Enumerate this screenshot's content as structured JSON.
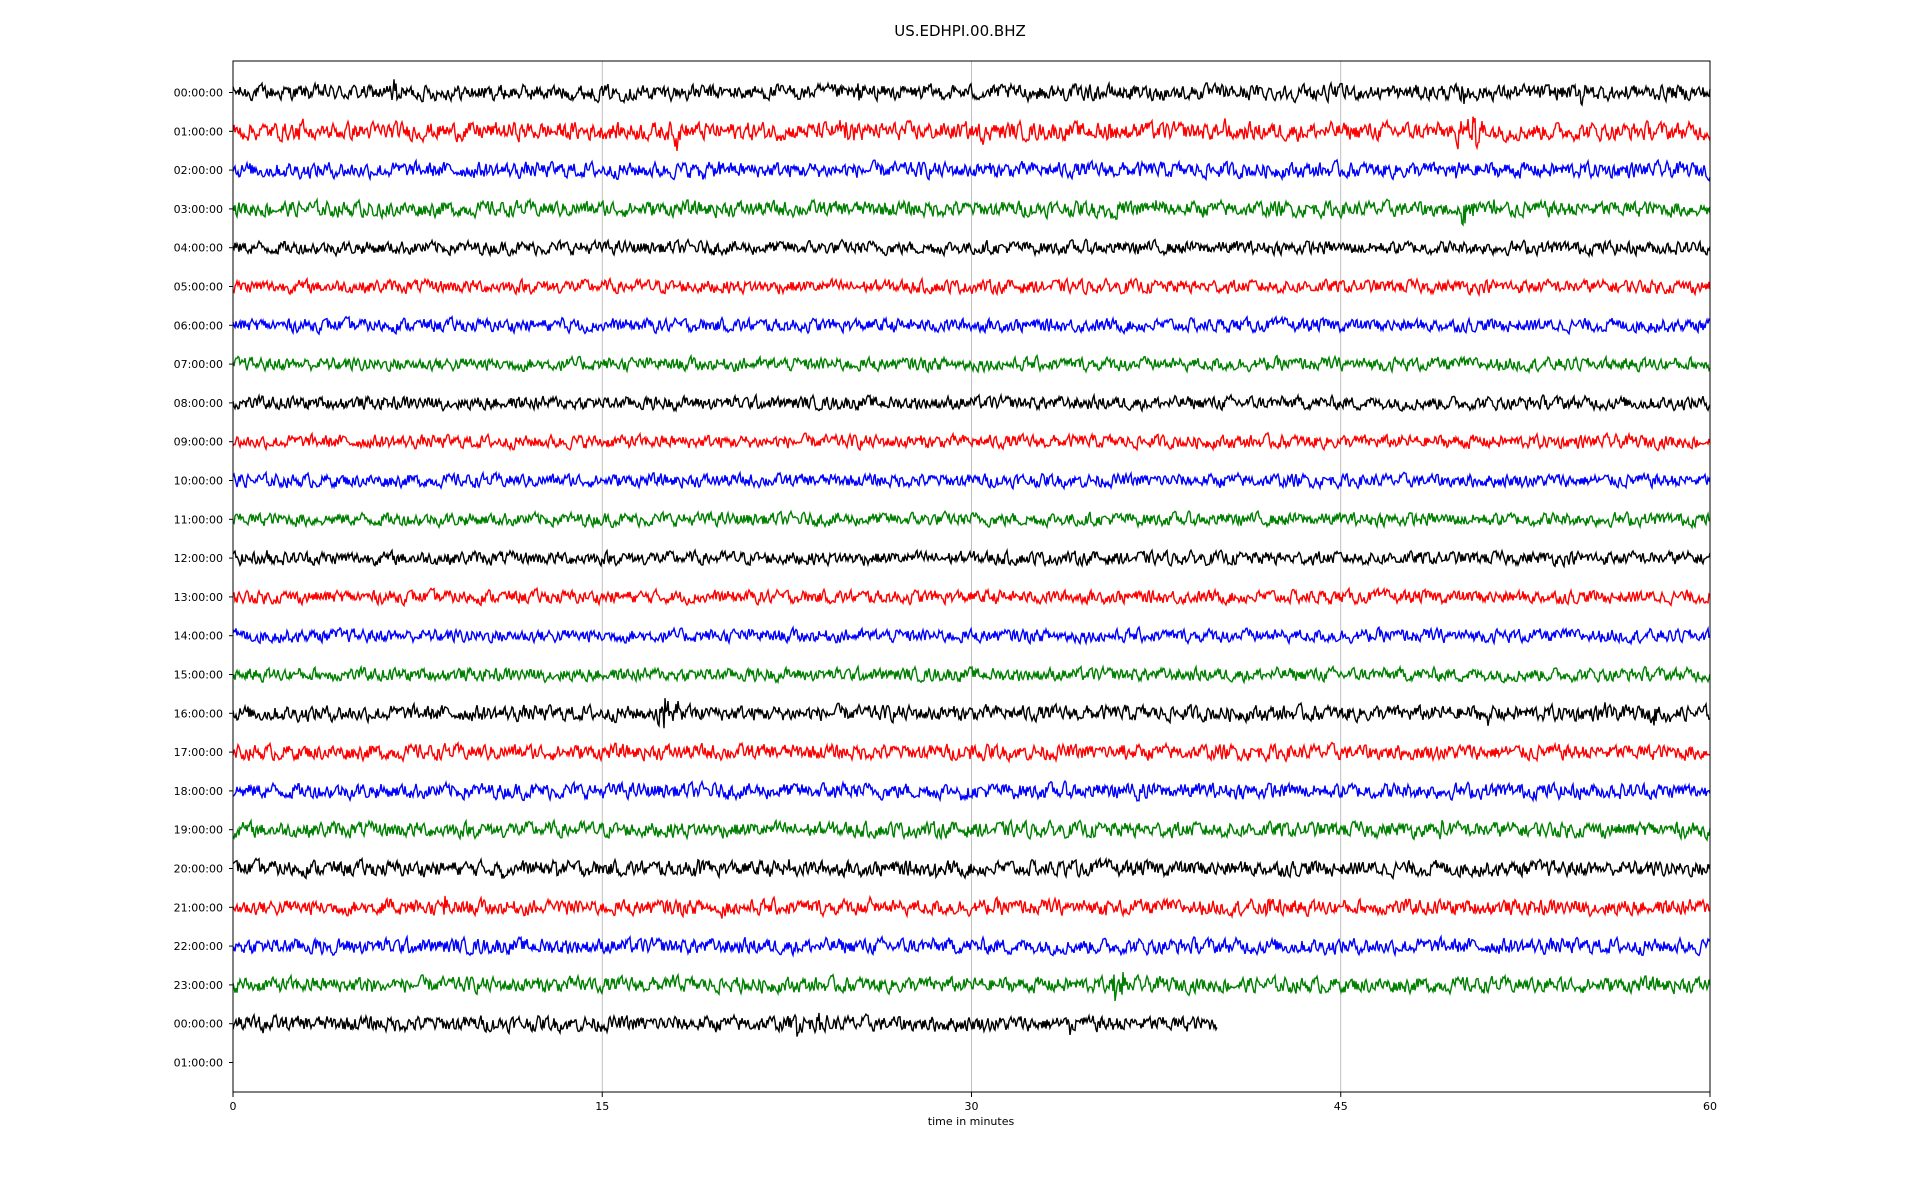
{
  "chart_data": {
    "type": "line",
    "title": "US.EDHPI.00.BHZ",
    "xlabel": "time in minutes",
    "ylabel": "",
    "xlim": [
      0,
      60
    ],
    "xticks": [
      0,
      15,
      30,
      45,
      60
    ],
    "grid": "vertical",
    "colors": [
      "#000000",
      "#ff0000",
      "#0000ff",
      "#008000"
    ],
    "row_labels": [
      "00:00:00",
      "01:00:00",
      "02:00:00",
      "03:00:00",
      "04:00:00",
      "05:00:00",
      "06:00:00",
      "07:00:00",
      "08:00:00",
      "09:00:00",
      "10:00:00",
      "11:00:00",
      "12:00:00",
      "13:00:00",
      "14:00:00",
      "15:00:00",
      "16:00:00",
      "17:00:00",
      "18:00:00",
      "19:00:00",
      "20:00:00",
      "21:00:00",
      "22:00:00",
      "23:00:00",
      "00:00:00",
      "01:00:00"
    ],
    "series": [
      {
        "row": 0,
        "end_minute": 60,
        "noise": 0.7,
        "events": [
          [
            6.5,
            2.3
          ],
          [
            25.5,
            1.2
          ],
          [
            50.0,
            2.0
          ],
          [
            54.8,
            2.0
          ],
          [
            56.5,
            1.0
          ]
        ]
      },
      {
        "row": 1,
        "end_minute": 60,
        "noise": 0.8,
        "events": [
          [
            2.8,
            1.5
          ],
          [
            3.5,
            1.3
          ],
          [
            18.0,
            2.0
          ],
          [
            24.8,
            2.0
          ],
          [
            25.3,
            1.5
          ],
          [
            30.5,
            1.3
          ],
          [
            35.5,
            1.6
          ],
          [
            36.8,
            1.0
          ],
          [
            40.3,
            2.0
          ],
          [
            49.8,
            3.5
          ],
          [
            50.4,
            4.6
          ],
          [
            50.6,
            2.5
          ]
        ]
      },
      {
        "row": 2,
        "end_minute": 60,
        "noise": 0.7,
        "events": [
          [
            19.0,
            1.3
          ],
          [
            19.8,
            1.0
          ],
          [
            49.7,
            1.6
          ]
        ]
      },
      {
        "row": 3,
        "end_minute": 60,
        "noise": 0.7,
        "events": [
          [
            5.7,
            1.6
          ],
          [
            35.3,
            1.6
          ],
          [
            35.8,
            1.4
          ],
          [
            37.5,
            1.2
          ],
          [
            49.7,
            2.2
          ],
          [
            50.0,
            2.8
          ],
          [
            50.3,
            2.2
          ],
          [
            51.3,
            2.2
          ],
          [
            51.6,
            1.5
          ]
        ]
      },
      {
        "row": 4,
        "end_minute": 60,
        "noise": 0.6,
        "events": []
      },
      {
        "row": 5,
        "end_minute": 60,
        "noise": 0.6,
        "events": []
      },
      {
        "row": 6,
        "end_minute": 60,
        "noise": 0.6,
        "events": [
          [
            13.4,
            0.8
          ]
        ]
      },
      {
        "row": 7,
        "end_minute": 60,
        "noise": 0.6,
        "events": []
      },
      {
        "row": 8,
        "end_minute": 60,
        "noise": 0.6,
        "events": []
      },
      {
        "row": 9,
        "end_minute": 60,
        "noise": 0.6,
        "events": []
      },
      {
        "row": 10,
        "end_minute": 60,
        "noise": 0.6,
        "events": []
      },
      {
        "row": 11,
        "end_minute": 60,
        "noise": 0.6,
        "events": []
      },
      {
        "row": 12,
        "end_minute": 60,
        "noise": 0.6,
        "events": [
          [
            1.4,
            1.0
          ]
        ]
      },
      {
        "row": 13,
        "end_minute": 60,
        "noise": 0.6,
        "events": []
      },
      {
        "row": 14,
        "end_minute": 60,
        "noise": 0.6,
        "events": []
      },
      {
        "row": 15,
        "end_minute": 60,
        "noise": 0.6,
        "events": []
      },
      {
        "row": 16,
        "end_minute": 60,
        "noise": 0.7,
        "events": [
          [
            17.2,
            2.0
          ],
          [
            17.6,
            3.4
          ],
          [
            18.0,
            1.5
          ],
          [
            19.2,
            1.0
          ],
          [
            51.0,
            1.0
          ],
          [
            55.8,
            0.9
          ],
          [
            57.8,
            1.0
          ],
          [
            58.4,
            1.0
          ]
        ]
      },
      {
        "row": 17,
        "end_minute": 60,
        "noise": 0.7,
        "events": [
          [
            30.1,
            0.9
          ],
          [
            36.2,
            1.2
          ],
          [
            47.8,
            0.9
          ]
        ]
      },
      {
        "row": 18,
        "end_minute": 60,
        "noise": 0.7,
        "events": [
          [
            24.6,
            1.4
          ],
          [
            29.6,
            1.0
          ],
          [
            36.8,
            2.0
          ],
          [
            43.0,
            1.0
          ]
        ]
      },
      {
        "row": 19,
        "end_minute": 60,
        "noise": 0.7,
        "events": [
          [
            48.6,
            0.9
          ],
          [
            49.1,
            0.8
          ]
        ]
      },
      {
        "row": 20,
        "end_minute": 60,
        "noise": 0.7,
        "events": [
          [
            10.9,
            0.8
          ],
          [
            13.2,
            0.8
          ],
          [
            18.9,
            0.9
          ],
          [
            22.6,
            0.8
          ],
          [
            28.5,
            2.0
          ],
          [
            34.0,
            1.0
          ]
        ]
      },
      {
        "row": 21,
        "end_minute": 60,
        "noise": 0.7,
        "events": [
          [
            6.2,
            1.0
          ],
          [
            8.6,
            1.3
          ],
          [
            12.9,
            1.6
          ],
          [
            13.4,
            1.0
          ],
          [
            19.8,
            0.9
          ],
          [
            25.8,
            1.5
          ],
          [
            35.6,
            1.2
          ],
          [
            42.0,
            1.3
          ],
          [
            42.4,
            1.6
          ]
        ]
      },
      {
        "row": 22,
        "end_minute": 60,
        "noise": 0.7,
        "events": [
          [
            4.0,
            0.7
          ]
        ]
      },
      {
        "row": 23,
        "end_minute": 60,
        "noise": 0.7,
        "events": [
          [
            5.6,
            1.3
          ],
          [
            6.2,
            1.0
          ],
          [
            14.2,
            0.8
          ],
          [
            17.8,
            0.8
          ],
          [
            20.5,
            0.8
          ],
          [
            35.8,
            2.8
          ],
          [
            36.1,
            2.0
          ],
          [
            53.5,
            0.7
          ]
        ]
      },
      {
        "row": 24,
        "end_minute": 40,
        "noise": 0.7,
        "events": [
          [
            1.2,
            0.8
          ],
          [
            22.9,
            2.0
          ],
          [
            23.9,
            1.5
          ],
          [
            34.0,
            1.2
          ]
        ]
      }
    ]
  }
}
